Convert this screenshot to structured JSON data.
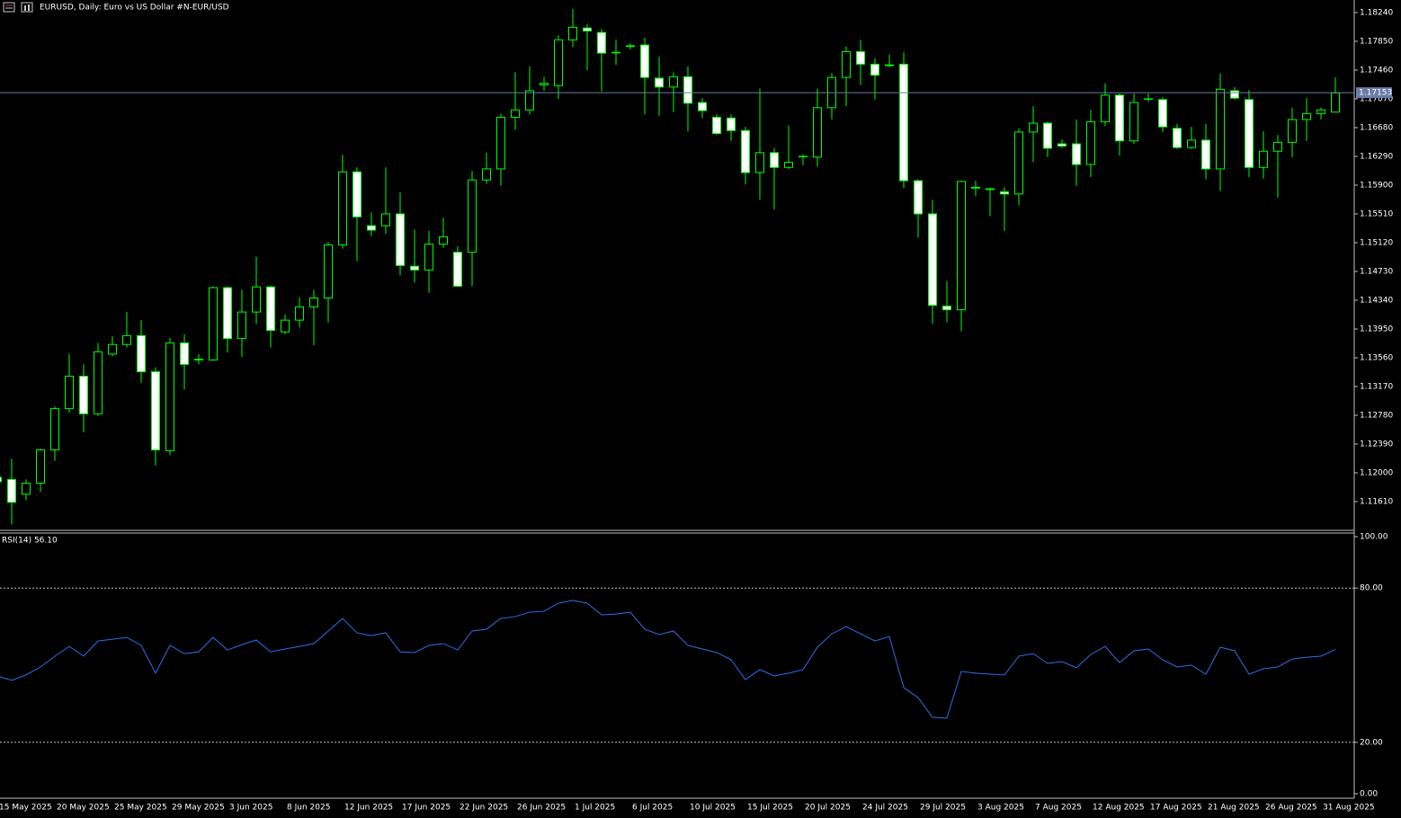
{
  "chart_data": [
    {
      "type": "candlestick",
      "title": "EURUSD, Daily:  Euro vs US Dollar #N-EUR/USD",
      "categories": [
        "15 May 2025",
        null,
        null,
        null,
        "20 May 2025",
        null,
        null,
        null,
        "25 May 2025",
        null,
        null,
        null,
        "29 May 2025",
        null,
        null,
        null,
        "3 Jun 2025",
        null,
        null,
        null,
        "8 Jun 2025",
        null,
        null,
        null,
        "12 Jun 2025",
        null,
        null,
        null,
        "17 Jun 2025",
        null,
        null,
        null,
        "22 Jun 2025",
        null,
        null,
        null,
        "26 Jun 2025",
        null,
        null,
        null,
        "1 Jul 2025",
        null,
        null,
        null,
        "6 Jul 2025",
        null,
        null,
        null,
        "10 Jul 2025",
        null,
        null,
        null,
        "15 Jul 2025",
        null,
        null,
        null,
        "20 Jul 2025",
        null,
        null,
        null,
        "24 Jul 2025",
        null,
        null,
        null,
        "29 Jul 2025",
        null,
        null,
        null,
        "3 Aug 2025",
        null,
        null,
        null,
        "7 Aug 2025",
        null,
        null,
        null,
        "12 Aug 2025",
        null,
        null,
        null,
        "17 Aug 2025",
        null,
        null,
        null,
        "21 Aug 2025",
        null,
        null,
        null,
        "26 Aug 2025",
        null,
        null,
        null,
        "31 Aug 2025",
        null
      ],
      "open": [
        1.1194,
        1.1191,
        1.1171,
        1.1186,
        1.1231,
        1.1287,
        1.1331,
        1.128,
        1.1361,
        1.1374,
        1.1386,
        1.1337,
        1.123,
        1.1376,
        1.1353,
        1.1353,
        1.1451,
        1.1382,
        1.1418,
        1.1452,
        1.1391,
        1.1407,
        1.1425,
        1.1437,
        1.1509,
        1.1608,
        1.1535,
        1.1535,
        1.1551,
        1.148,
        1.1475,
        1.151,
        1.1499,
        1.1499,
        1.1597,
        1.1612,
        1.1682,
        1.1692,
        1.1726,
        1.1725,
        1.1787,
        1.1803,
        1.1797,
        1.177,
        1.1779,
        1.178,
        1.1735,
        1.1723,
        1.1737,
        1.1702,
        1.1682,
        1.1681,
        1.1664,
        1.1607,
        1.1634,
        1.1614,
        1.1629,
        1.1628,
        1.1695,
        1.1736,
        1.1771,
        1.1754,
        1.1752,
        1.1754,
        1.1596,
        1.1551,
        1.1426,
        1.1421,
        1.1586,
        1.1585,
        1.1581,
        1.1578,
        1.1662,
        1.1674,
        1.1646,
        1.1646,
        1.1618,
        1.1676,
        1.1712,
        1.165,
        1.1707,
        1.1706,
        1.1667,
        1.1641,
        1.1651,
        1.1612,
        1.1718,
        1.1706,
        1.1614,
        1.1636,
        1.1648,
        1.1679,
        1.1687,
        1.1689
      ],
      "high": [
        1.1204,
        1.1219,
        1.1191,
        1.1233,
        1.129,
        1.1361,
        1.1347,
        1.1376,
        1.1385,
        1.1418,
        1.1407,
        1.1343,
        1.1383,
        1.1388,
        1.1361,
        1.1453,
        1.1453,
        1.1448,
        1.1493,
        1.1454,
        1.1415,
        1.1438,
        1.1448,
        1.1513,
        1.1631,
        1.1614,
        1.1553,
        1.1614,
        1.158,
        1.153,
        1.1528,
        1.1546,
        1.1507,
        1.1609,
        1.1634,
        1.1687,
        1.1743,
        1.1751,
        1.1737,
        1.1793,
        1.1829,
        1.1808,
        1.1802,
        1.1787,
        1.1782,
        1.179,
        1.1764,
        1.1743,
        1.1751,
        1.1708,
        1.1686,
        1.1686,
        1.1669,
        1.1721,
        1.164,
        1.1671,
        1.1632,
        1.1721,
        1.1742,
        1.1778,
        1.1787,
        1.1762,
        1.1767,
        1.177,
        1.1598,
        1.157,
        1.146,
        1.1596,
        1.1596,
        1.1587,
        1.1587,
        1.1667,
        1.1697,
        1.1676,
        1.1652,
        1.1679,
        1.1692,
        1.1728,
        1.1714,
        1.1714,
        1.1714,
        1.1709,
        1.1673,
        1.1669,
        1.1673,
        1.1741,
        1.1723,
        1.1719,
        1.1663,
        1.1658,
        1.1695,
        1.1708,
        1.1695,
        1.1736
      ],
      "low": [
        1.1176,
        1.113,
        1.1163,
        1.1174,
        1.1216,
        1.1282,
        1.1255,
        1.1277,
        1.1358,
        1.137,
        1.1322,
        1.121,
        1.1224,
        1.1313,
        1.1347,
        1.1352,
        1.1363,
        1.1357,
        1.1402,
        1.137,
        1.1388,
        1.1397,
        1.1373,
        1.1404,
        1.1504,
        1.1487,
        1.1521,
        1.1524,
        1.1468,
        1.1458,
        1.1444,
        1.1505,
        1.1452,
        1.1453,
        1.1592,
        1.1589,
        1.1665,
        1.1686,
        1.1718,
        1.1707,
        1.1777,
        1.1746,
        1.1717,
        1.1753,
        1.1774,
        1.1686,
        1.1684,
        1.1689,
        1.1663,
        1.1681,
        1.1658,
        1.165,
        1.1591,
        1.157,
        1.1557,
        1.1612,
        1.1617,
        1.1615,
        1.1679,
        1.1697,
        1.1726,
        1.1706,
        1.175,
        1.1586,
        1.1519,
        1.1402,
        1.1404,
        1.1392,
        1.1575,
        1.1548,
        1.1528,
        1.1563,
        1.1621,
        1.1628,
        1.164,
        1.1589,
        1.1601,
        1.167,
        1.163,
        1.1646,
        1.1703,
        1.1662,
        1.1639,
        1.1639,
        1.1598,
        1.1582,
        1.1706,
        1.1601,
        1.1599,
        1.1573,
        1.1628,
        1.165,
        1.1679,
        1.1689
      ],
      "close": [
        1.1188,
        1.116,
        1.1186,
        1.1231,
        1.1287,
        1.1331,
        1.128,
        1.1364,
        1.1374,
        1.1386,
        1.1337,
        1.1231,
        1.1376,
        1.1347,
        1.1354,
        1.1451,
        1.1382,
        1.1418,
        1.1452,
        1.1393,
        1.1407,
        1.1425,
        1.1437,
        1.1509,
        1.1608,
        1.1547,
        1.1529,
        1.1551,
        1.1481,
        1.1475,
        1.151,
        1.152,
        1.1453,
        1.1597,
        1.1612,
        1.1682,
        1.1692,
        1.1718,
        1.1728,
        1.1787,
        1.1804,
        1.1799,
        1.1769,
        1.177,
        1.1778,
        1.1736,
        1.1723,
        1.1737,
        1.1701,
        1.1691,
        1.166,
        1.1664,
        1.1607,
        1.1634,
        1.1614,
        1.1621,
        1.1629,
        1.1695,
        1.1736,
        1.1771,
        1.1754,
        1.1739,
        1.1753,
        1.1596,
        1.1551,
        1.1427,
        1.1421,
        1.1595,
        1.1587,
        1.1584,
        1.1578,
        1.1662,
        1.1674,
        1.164,
        1.1643,
        1.1618,
        1.1676,
        1.1712,
        1.165,
        1.1702,
        1.1707,
        1.1669,
        1.1641,
        1.1651,
        1.1612,
        1.172,
        1.1708,
        1.1614,
        1.1636,
        1.1648,
        1.1679,
        1.1687,
        1.1692,
        1.1715
      ],
      "ylim": [
        1.1122,
        1.1841
      ],
      "yticks": [
        {
          "value": 1.1824,
          "label": "1.18240"
        },
        {
          "value": 1.1785,
          "label": "1.17850"
        },
        {
          "value": 1.1746,
          "label": "1.17460"
        },
        {
          "value": 1.1707,
          "label": "1.17070"
        },
        {
          "value": 1.1668,
          "label": "1.16680"
        },
        {
          "value": 1.1629,
          "label": "1.16290"
        },
        {
          "value": 1.159,
          "label": "1.15900"
        },
        {
          "value": 1.1551,
          "label": "1.15510"
        },
        {
          "value": 1.1512,
          "label": "1.15120"
        },
        {
          "value": 1.1473,
          "label": "1.14730"
        },
        {
          "value": 1.1434,
          "label": "1.14340"
        },
        {
          "value": 1.1395,
          "label": "1.13950"
        },
        {
          "value": 1.1356,
          "label": "1.13560"
        },
        {
          "value": 1.1317,
          "label": "1.13170"
        },
        {
          "value": 1.1278,
          "label": "1.12780"
        },
        {
          "value": 1.1239,
          "label": "1.12390"
        },
        {
          "value": 1.12,
          "label": "1.12000"
        },
        {
          "value": 1.1161,
          "label": "1.11610"
        }
      ],
      "current_price": {
        "value": 1.17153,
        "label": "1.17153"
      },
      "up_color": "#000000",
      "down_color": "#ffffff",
      "wick_color": "#00ff00",
      "price_line_color": "#6b7ca8"
    },
    {
      "type": "line",
      "title": "RSI(14) 56.10",
      "values": [
        45.8,
        44.1,
        46.2,
        49.3,
        53.5,
        57.3,
        53.5,
        59.4,
        60.1,
        60.8,
        57.7,
        46.9,
        57.7,
        54.5,
        55.2,
        60.8,
        55.9,
        58.0,
        59.8,
        55.2,
        56.3,
        57.3,
        58.4,
        63.3,
        68.2,
        62.6,
        61.5,
        62.6,
        55.2,
        54.9,
        57.7,
        58.4,
        55.9,
        63.3,
        64.0,
        68.2,
        68.9,
        70.6,
        71.0,
        74.1,
        75.2,
        74.1,
        69.6,
        69.9,
        70.6,
        64.0,
        61.9,
        63.3,
        57.7,
        56.3,
        54.9,
        52.1,
        44.4,
        48.3,
        45.8,
        46.9,
        48.3,
        57.0,
        62.2,
        65.0,
        62.2,
        59.4,
        61.2,
        41.3,
        37.4,
        29.7,
        29.4,
        47.6,
        46.9,
        46.5,
        46.2,
        53.5,
        54.5,
        50.7,
        51.4,
        49.0,
        54.2,
        57.3,
        51.0,
        55.6,
        56.3,
        52.1,
        49.3,
        50.0,
        46.5,
        57.0,
        55.6,
        46.5,
        48.6,
        49.3,
        52.4,
        53.1,
        53.5,
        56.1
      ],
      "color": "#2f6fe8",
      "ylim": [
        0,
        100
      ],
      "yticks": [
        {
          "value": 100,
          "label": "100.00"
        },
        {
          "value": 80,
          "label": "80.00"
        },
        {
          "value": 20,
          "label": "20.00"
        },
        {
          "value": 0,
          "label": "0.00"
        }
      ]
    }
  ]
}
